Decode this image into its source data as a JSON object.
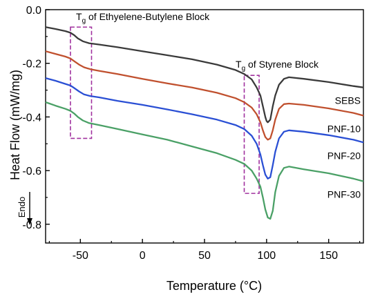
{
  "chart_data": {
    "type": "line",
    "xlabel": "Temperature (°C)",
    "ylabel": "Heat Flow (mW/mg)",
    "xlim": [
      -78,
      178
    ],
    "ylim": [
      -0.87,
      0.0
    ],
    "xticks": [
      -50,
      0,
      50,
      100,
      150
    ],
    "xtick_labels": [
      "-50",
      "0",
      "50",
      "100",
      "150"
    ],
    "yticks": [
      0.0,
      -0.2,
      -0.4,
      -0.6,
      -0.8
    ],
    "ytick_labels": [
      "0.0",
      "-0.2",
      "-0.4",
      "-0.6",
      "-0.8"
    ],
    "grid": false,
    "annotations": {
      "tg_eb": {
        "prefix": "T",
        "sub": "g",
        "rest": " of Ethyelene-Butylene Block"
      },
      "tg_styrene": {
        "prefix": "T",
        "sub": "g",
        "rest": " of Styrene Block"
      },
      "endo": "Endo"
    },
    "highlight_boxes": [
      {
        "x": [
          -58,
          -41
        ],
        "y": [
          -0.065,
          -0.48
        ]
      },
      {
        "x": [
          82,
          94
        ],
        "y": [
          -0.245,
          -0.685
        ]
      }
    ],
    "series": [
      {
        "name": "SEBS",
        "color": "#3a3a3a",
        "points": [
          [
            -78,
            -0.065
          ],
          [
            -70,
            -0.072
          ],
          [
            -62,
            -0.08
          ],
          [
            -58,
            -0.086
          ],
          [
            -55,
            -0.095
          ],
          [
            -52,
            -0.107
          ],
          [
            -48,
            -0.118
          ],
          [
            -43,
            -0.125
          ],
          [
            -35,
            -0.13
          ],
          [
            -20,
            -0.14
          ],
          [
            0,
            -0.155
          ],
          [
            20,
            -0.17
          ],
          [
            40,
            -0.185
          ],
          [
            60,
            -0.205
          ],
          [
            75,
            -0.225
          ],
          [
            82,
            -0.24
          ],
          [
            88,
            -0.26
          ],
          [
            92,
            -0.29
          ],
          [
            95,
            -0.32
          ],
          [
            97,
            -0.36
          ],
          [
            99,
            -0.4
          ],
          [
            100,
            -0.415
          ],
          [
            101,
            -0.42
          ],
          [
            103,
            -0.41
          ],
          [
            105,
            -0.36
          ],
          [
            107,
            -0.32
          ],
          [
            110,
            -0.28
          ],
          [
            114,
            -0.258
          ],
          [
            118,
            -0.252
          ],
          [
            130,
            -0.258
          ],
          [
            150,
            -0.27
          ],
          [
            170,
            -0.285
          ],
          [
            178,
            -0.29
          ]
        ]
      },
      {
        "name": "PNF-10",
        "color": "#c0502e",
        "points": [
          [
            -78,
            -0.155
          ],
          [
            -70,
            -0.165
          ],
          [
            -62,
            -0.175
          ],
          [
            -58,
            -0.182
          ],
          [
            -55,
            -0.192
          ],
          [
            -51,
            -0.205
          ],
          [
            -47,
            -0.215
          ],
          [
            -42,
            -0.222
          ],
          [
            -35,
            -0.228
          ],
          [
            -20,
            -0.24
          ],
          [
            0,
            -0.258
          ],
          [
            20,
            -0.275
          ],
          [
            40,
            -0.29
          ],
          [
            60,
            -0.31
          ],
          [
            75,
            -0.33
          ],
          [
            82,
            -0.345
          ],
          [
            88,
            -0.365
          ],
          [
            92,
            -0.39
          ],
          [
            95,
            -0.42
          ],
          [
            97,
            -0.45
          ],
          [
            99,
            -0.475
          ],
          [
            101,
            -0.485
          ],
          [
            103,
            -0.48
          ],
          [
            105,
            -0.45
          ],
          [
            107,
            -0.41
          ],
          [
            110,
            -0.37
          ],
          [
            114,
            -0.352
          ],
          [
            118,
            -0.35
          ],
          [
            130,
            -0.355
          ],
          [
            150,
            -0.368
          ],
          [
            170,
            -0.385
          ],
          [
            178,
            -0.395
          ]
        ]
      },
      {
        "name": "PNF-20",
        "color": "#2a4fd4",
        "points": [
          [
            -78,
            -0.255
          ],
          [
            -70,
            -0.265
          ],
          [
            -62,
            -0.277
          ],
          [
            -58,
            -0.283
          ],
          [
            -55,
            -0.292
          ],
          [
            -51,
            -0.305
          ],
          [
            -47,
            -0.316
          ],
          [
            -42,
            -0.322
          ],
          [
            -35,
            -0.327
          ],
          [
            -20,
            -0.34
          ],
          [
            0,
            -0.355
          ],
          [
            20,
            -0.372
          ],
          [
            40,
            -0.39
          ],
          [
            60,
            -0.41
          ],
          [
            75,
            -0.43
          ],
          [
            82,
            -0.445
          ],
          [
            88,
            -0.47
          ],
          [
            92,
            -0.5
          ],
          [
            95,
            -0.54
          ],
          [
            97,
            -0.58
          ],
          [
            99,
            -0.615
          ],
          [
            101,
            -0.63
          ],
          [
            103,
            -0.625
          ],
          [
            105,
            -0.58
          ],
          [
            107,
            -0.53
          ],
          [
            110,
            -0.48
          ],
          [
            114,
            -0.455
          ],
          [
            118,
            -0.45
          ],
          [
            130,
            -0.455
          ],
          [
            150,
            -0.468
          ],
          [
            170,
            -0.485
          ],
          [
            178,
            -0.495
          ]
        ]
      },
      {
        "name": "PNF-30",
        "color": "#4aa066",
        "points": [
          [
            -78,
            -0.345
          ],
          [
            -70,
            -0.358
          ],
          [
            -62,
            -0.37
          ],
          [
            -58,
            -0.377
          ],
          [
            -55,
            -0.387
          ],
          [
            -52,
            -0.4
          ],
          [
            -48,
            -0.413
          ],
          [
            -43,
            -0.423
          ],
          [
            -35,
            -0.43
          ],
          [
            -20,
            -0.445
          ],
          [
            0,
            -0.465
          ],
          [
            20,
            -0.485
          ],
          [
            40,
            -0.51
          ],
          [
            60,
            -0.535
          ],
          [
            75,
            -0.56
          ],
          [
            82,
            -0.575
          ],
          [
            88,
            -0.6
          ],
          [
            92,
            -0.63
          ],
          [
            95,
            -0.66
          ],
          [
            97,
            -0.7
          ],
          [
            99,
            -0.745
          ],
          [
            101,
            -0.775
          ],
          [
            103,
            -0.78
          ],
          [
            105,
            -0.75
          ],
          [
            107,
            -0.68
          ],
          [
            110,
            -0.62
          ],
          [
            114,
            -0.59
          ],
          [
            118,
            -0.585
          ],
          [
            130,
            -0.595
          ],
          [
            150,
            -0.61
          ],
          [
            170,
            -0.63
          ],
          [
            178,
            -0.64
          ]
        ]
      }
    ],
    "series_label_positions": [
      "right-of-curve",
      "right-of-curve",
      "right-of-curve",
      "right-of-curve"
    ]
  }
}
